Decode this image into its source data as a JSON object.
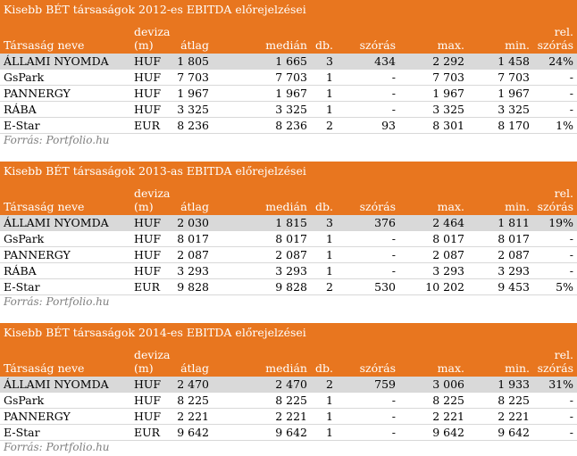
{
  "headers": {
    "name": "Társaság neve",
    "currency_line1": "deviza",
    "currency_line2": "(m)",
    "avg": "átlag",
    "median": "medián",
    "count": "db.",
    "stdev": "szórás",
    "max": "max.",
    "min": "min.",
    "rel_line1": "rel.",
    "rel_line2": "szórás"
  },
  "source": "Forrás: Portfolio.hu",
  "tables": [
    {
      "title": "Kisebb BÉT társaságok 2012-es EBITDA előrejelzései",
      "rows": [
        {
          "name": "ÁLLAMI NYOMDA",
          "cur": "HUF",
          "avg": "1 805",
          "med": "1 665",
          "db": "3",
          "sd": "434",
          "max": "2 292",
          "min": "1 458",
          "rel": "24%"
        },
        {
          "name": "GsPark",
          "cur": "HUF",
          "avg": "7 703",
          "med": "7 703",
          "db": "1",
          "sd": "-",
          "max": "7 703",
          "min": "7 703",
          "rel": "-"
        },
        {
          "name": "PANNERGY",
          "cur": "HUF",
          "avg": "1 967",
          "med": "1 967",
          "db": "1",
          "sd": "-",
          "max": "1 967",
          "min": "1 967",
          "rel": "-"
        },
        {
          "name": "RÁBA",
          "cur": "HUF",
          "avg": "3 325",
          "med": "3 325",
          "db": "1",
          "sd": "-",
          "max": "3 325",
          "min": "3 325",
          "rel": "-"
        },
        {
          "name": "E-Star",
          "cur": "EUR",
          "avg": "8 236",
          "med": "8 236",
          "db": "2",
          "sd": "93",
          "max": "8 301",
          "min": "8 170",
          "rel": "1%"
        }
      ]
    },
    {
      "title": "Kisebb BÉT társaságok 2013-as EBITDA előrejelzései",
      "rows": [
        {
          "name": "ÁLLAMI NYOMDA",
          "cur": "HUF",
          "avg": "2 030",
          "med": "1 815",
          "db": "3",
          "sd": "376",
          "max": "2 464",
          "min": "1 811",
          "rel": "19%"
        },
        {
          "name": "GsPark",
          "cur": "HUF",
          "avg": "8 017",
          "med": "8 017",
          "db": "1",
          "sd": "-",
          "max": "8 017",
          "min": "8 017",
          "rel": "-"
        },
        {
          "name": "PANNERGY",
          "cur": "HUF",
          "avg": "2 087",
          "med": "2 087",
          "db": "1",
          "sd": "-",
          "max": "2 087",
          "min": "2 087",
          "rel": "-"
        },
        {
          "name": "RÁBA",
          "cur": "HUF",
          "avg": "3 293",
          "med": "3 293",
          "db": "1",
          "sd": "-",
          "max": "3 293",
          "min": "3 293",
          "rel": "-"
        },
        {
          "name": "E-Star",
          "cur": "EUR",
          "avg": "9 828",
          "med": "9 828",
          "db": "2",
          "sd": "530",
          "max": "10 202",
          "min": "9 453",
          "rel": "5%"
        }
      ]
    },
    {
      "title": "Kisebb BÉT társaságok 2014-es EBITDA előrejelzései",
      "rows": [
        {
          "name": "ÁLLAMI NYOMDA",
          "cur": "HUF",
          "avg": "2 470",
          "med": "2 470",
          "db": "2",
          "sd": "759",
          "max": "3 006",
          "min": "1 933",
          "rel": "31%"
        },
        {
          "name": "GsPark",
          "cur": "HUF",
          "avg": "8 225",
          "med": "8 225",
          "db": "1",
          "sd": "-",
          "max": "8 225",
          "min": "8 225",
          "rel": "-"
        },
        {
          "name": "PANNERGY",
          "cur": "HUF",
          "avg": "2 221",
          "med": "2 221",
          "db": "1",
          "sd": "-",
          "max": "2 221",
          "min": "2 221",
          "rel": "-"
        },
        {
          "name": "E-Star",
          "cur": "EUR",
          "avg": "9 642",
          "med": "9 642",
          "db": "1",
          "sd": "-",
          "max": "9 642",
          "min": "9 642",
          "rel": "-"
        }
      ]
    }
  ]
}
